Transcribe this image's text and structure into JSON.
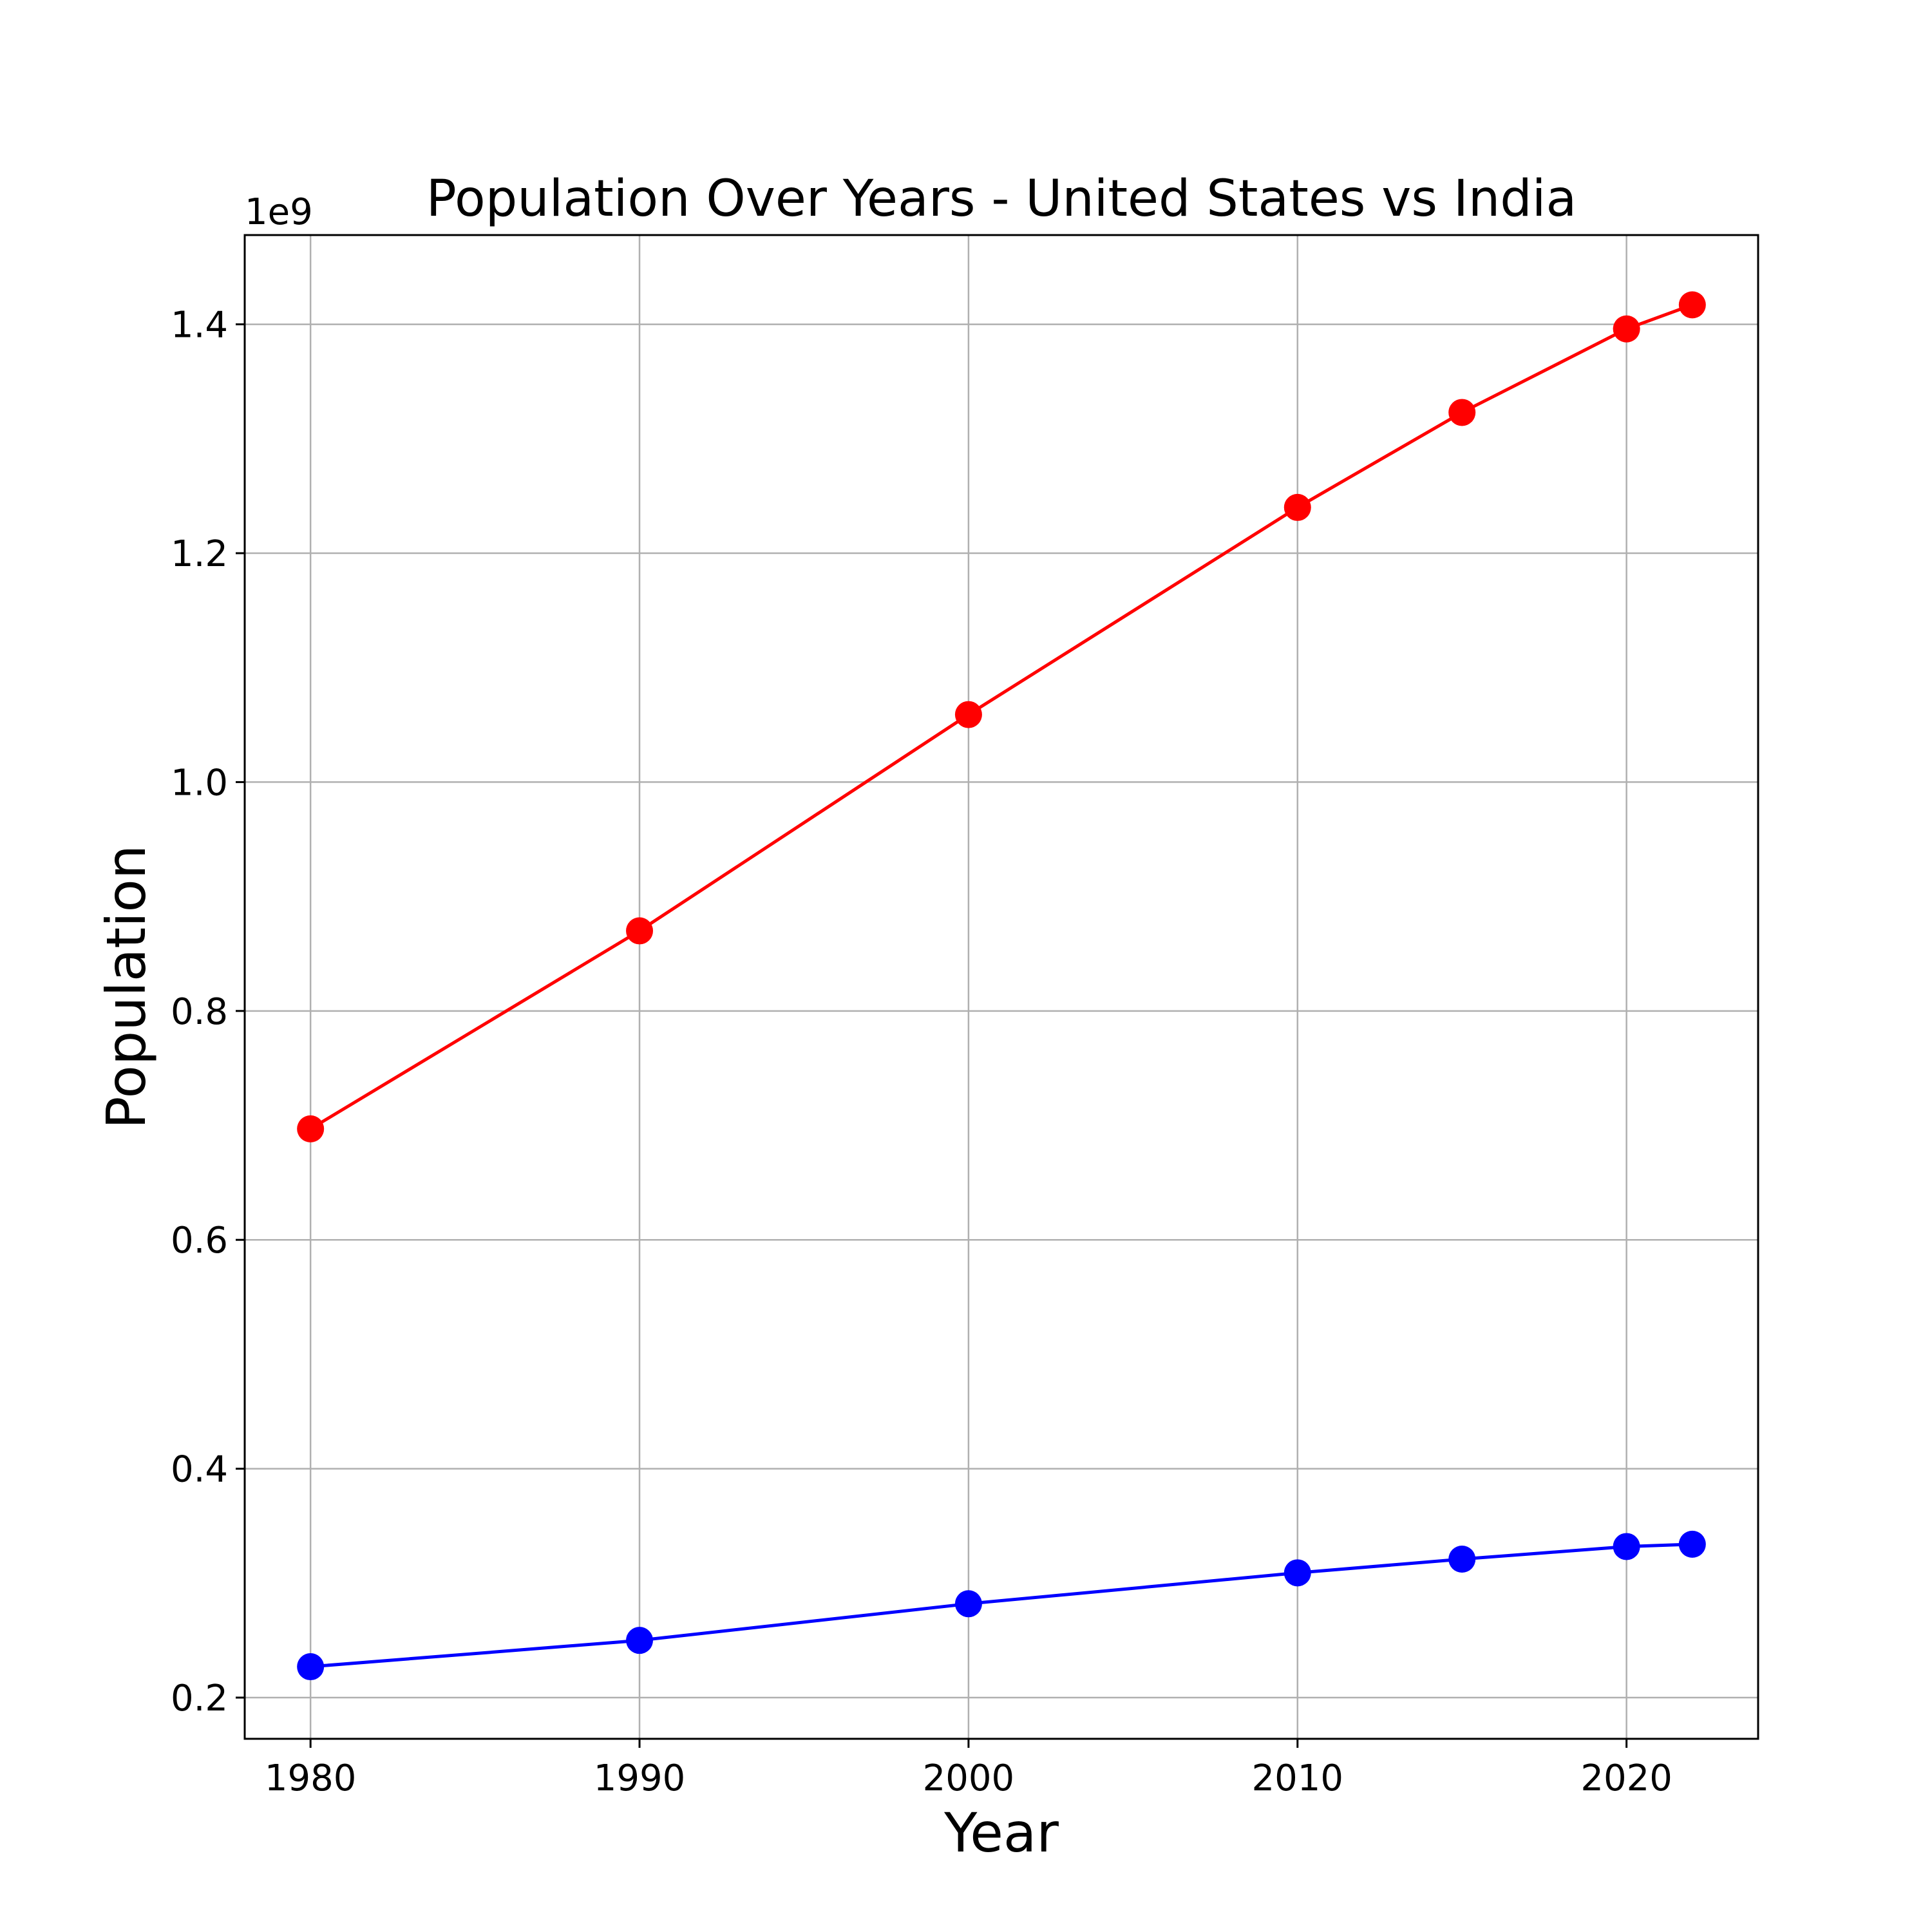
{
  "chart_data": {
    "type": "line",
    "title": "Population Over Years - United States vs India",
    "xlabel": "Year",
    "ylabel": "Population",
    "y_offset_label": "1e9",
    "xlim": [
      1978,
      2024
    ],
    "ylim": [
      0.164,
      1.478
    ],
    "x_ticks": [
      1980,
      1990,
      2000,
      2010,
      2020
    ],
    "x_tick_labels": [
      "1980",
      "1990",
      "2000",
      "2010",
      "2020"
    ],
    "y_ticks": [
      0.2,
      0.4,
      0.6,
      0.8,
      1.0,
      1.2,
      1.4
    ],
    "y_tick_labels": [
      "0.2",
      "0.4",
      "0.6",
      "0.8",
      "1.0",
      "1.2",
      "1.4"
    ],
    "grid": true,
    "x": [
      1980,
      1990,
      2000,
      2010,
      2015,
      2020,
      2022
    ],
    "series": [
      {
        "color": "#ff0000",
        "marker": "circle",
        "values": [
          0.697,
          0.87,
          1.059,
          1.24,
          1.323,
          1.396,
          1.417
        ]
      },
      {
        "color": "#0000ff",
        "marker": "circle",
        "values": [
          0.227,
          0.25,
          0.282,
          0.309,
          0.321,
          0.332,
          0.334
        ]
      }
    ]
  }
}
